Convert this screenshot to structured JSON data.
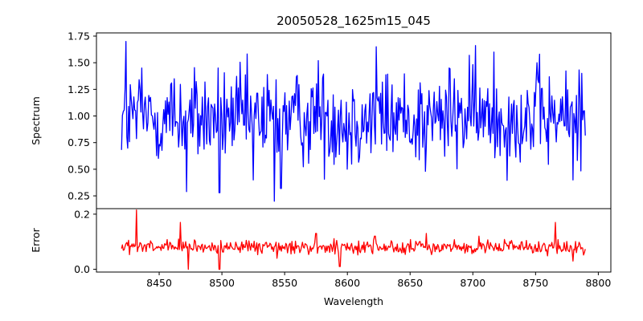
{
  "chart_data": {
    "type": "line",
    "title": "20050528_1625m15_045",
    "xlabel": "Wavelength",
    "x_range": [
      8420,
      8790
    ],
    "xlim": [
      8400,
      8810
    ],
    "x_ticks": [
      "8450",
      "8500",
      "8550",
      "8600",
      "8650",
      "8700",
      "8750",
      "8800"
    ],
    "panels": [
      {
        "name": "spectrum",
        "ylabel": "Spectrum",
        "ylim": [
          0.13,
          1.78
        ],
        "y_ticks": [
          "0.25",
          "0.50",
          "0.75",
          "1.00",
          "1.25",
          "1.50",
          "1.75"
        ],
        "color": "#0000ff",
        "peaks": [
          [
            8423.5,
            1.7
          ],
          [
            8436,
            1.45
          ],
          [
            8462,
            1.35
          ],
          [
            8497,
            1.45
          ],
          [
            8577,
            1.52
          ],
          [
            8623,
            1.65
          ],
          [
            8681,
            1.45
          ],
          [
            8697,
            1.57
          ],
          [
            8717,
            1.6
          ],
          [
            8751,
            1.5
          ],
          [
            8787,
            1.4
          ]
        ],
        "troughs": [
          [
            8472,
            0.29
          ],
          [
            8498,
            0.28
          ],
          [
            8542,
            0.2
          ],
          [
            8547,
            0.32
          ],
          [
            8525,
            0.4
          ],
          [
            8780,
            0.4
          ],
          [
            8600,
            0.5
          ],
          [
            8662,
            0.48
          ]
        ],
        "base": 0.98,
        "spread": 0.22
      },
      {
        "name": "error",
        "ylabel": "Error",
        "ylim": [
          -0.01,
          0.22
        ],
        "y_ticks": [
          "0.0",
          "0.2"
        ],
        "color": "#ff0000",
        "peaks": [
          [
            8432,
            0.215
          ],
          [
            8467,
            0.17
          ],
          [
            8575,
            0.13
          ],
          [
            8622,
            0.12
          ],
          [
            8663,
            0.13
          ],
          [
            8705,
            0.12
          ],
          [
            8766,
            0.17
          ]
        ],
        "troughs": [
          [
            8473,
            0.0
          ],
          [
            8498,
            0.0
          ],
          [
            8594,
            0.01
          ],
          [
            8544,
            0.04
          ],
          [
            8780,
            0.03
          ]
        ],
        "base": 0.08,
        "spread": 0.012
      }
    ]
  }
}
